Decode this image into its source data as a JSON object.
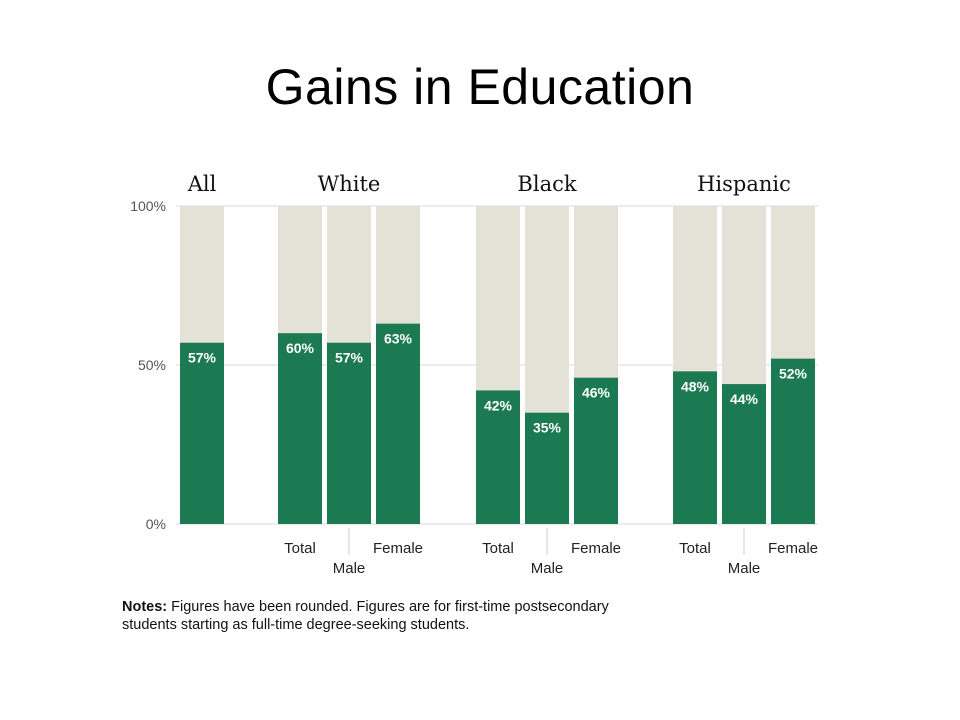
{
  "slide_title": "Gains in Education",
  "notes": {
    "label": "Notes:",
    "text": " Figures have been rounded. Figures are for first-time postsecondary students starting as full-time degree-seeking students."
  },
  "colors": {
    "bar": "#1b7a52",
    "track": "#e4e2d6",
    "grid": "#d8d8d8",
    "bar_label": "#ffffff",
    "axis_text": "#555555"
  },
  "chart_data": {
    "type": "bar",
    "ylim": [
      0,
      100
    ],
    "yticks": [
      "0%",
      "50%",
      "100%"
    ],
    "ytick_values": [
      0,
      50,
      100
    ],
    "grid": true,
    "groups": [
      {
        "name": "All",
        "bars": [
          {
            "label": "",
            "value": 57
          }
        ]
      },
      {
        "name": "White",
        "bars": [
          {
            "label": "Total",
            "value": 60
          },
          {
            "label": "Male",
            "value": 57
          },
          {
            "label": "Female",
            "value": 63
          }
        ]
      },
      {
        "name": "Black",
        "bars": [
          {
            "label": "Total",
            "value": 42
          },
          {
            "label": "Male",
            "value": 35
          },
          {
            "label": "Female",
            "value": 46
          }
        ]
      },
      {
        "name": "Hispanic",
        "bars": [
          {
            "label": "Total",
            "value": 48
          },
          {
            "label": "Male",
            "value": 44
          },
          {
            "label": "Female",
            "value": 52
          }
        ]
      }
    ]
  }
}
